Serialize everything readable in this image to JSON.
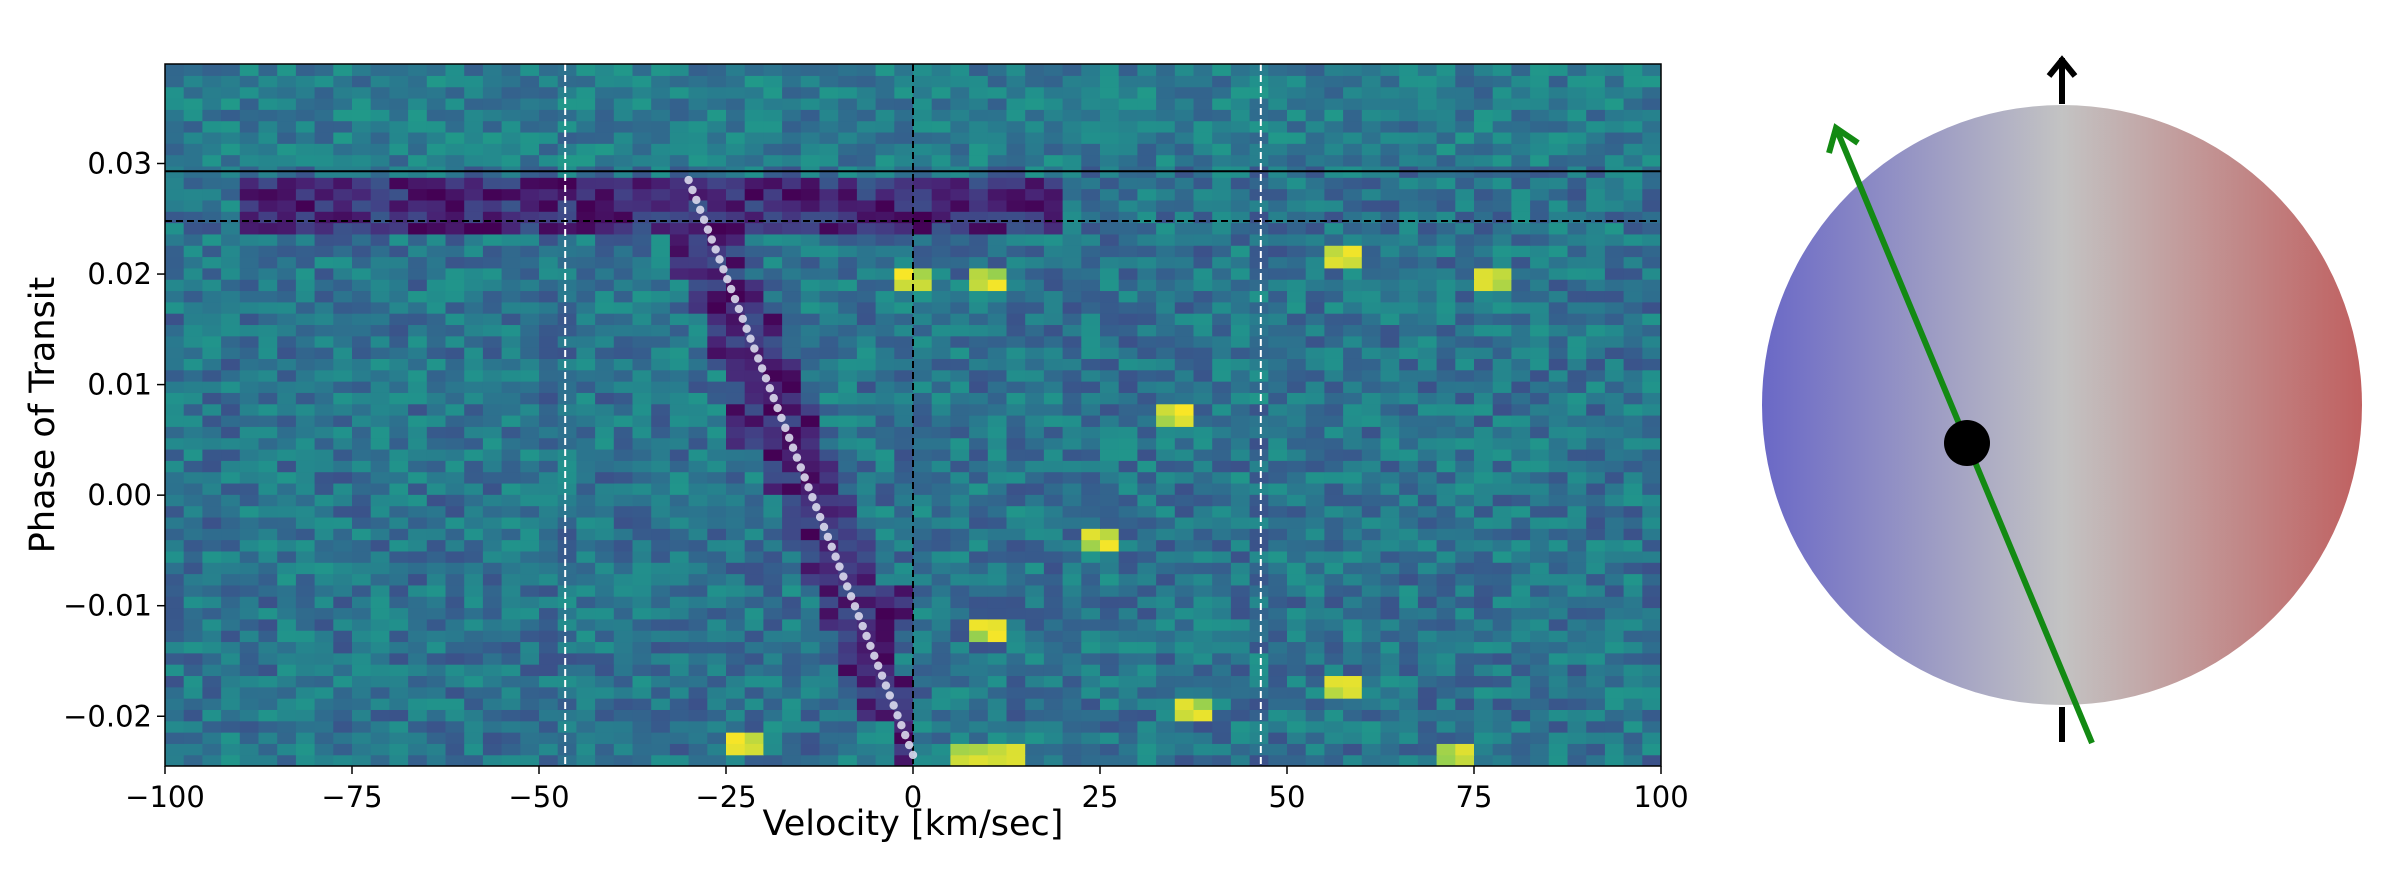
{
  "chart_data": [
    {
      "type": "heatmap",
      "xlabel": "Velocity [km/sec]",
      "ylabel": "Phase of Transit",
      "xlim": [
        -100,
        100
      ],
      "ylim": [
        -0.0245,
        0.039
      ],
      "x_ticks": [
        -100,
        -75,
        -50,
        -25,
        0,
        25,
        50,
        75,
        100
      ],
      "x_tick_labels": [
        "−100",
        "−75",
        "−50",
        "−25",
        "0",
        "25",
        "50",
        "75",
        "100"
      ],
      "y_ticks": [
        -0.02,
        -0.01,
        0.0,
        0.01,
        0.02,
        0.03
      ],
      "y_tick_labels": [
        "−0.02",
        "−0.01",
        "0.00",
        "0.01",
        "0.02",
        "0.03"
      ],
      "colormap": "viridis",
      "grid": false,
      "reference_lines": {
        "vertical_white_dashed": [
          -46.5,
          46.5
        ],
        "vertical_black_dashed": [
          0
        ],
        "horizontal_black_solid": [
          0.0293
        ],
        "horizontal_black_dashed": [
          0.0248
        ]
      },
      "shadow_track": {
        "style": "white dotted",
        "start": {
          "x": -30,
          "y": 0.0285
        },
        "end": {
          "x": 0,
          "y": -0.0235
        }
      },
      "dark_band_cells": [
        {
          "phase": 0.026,
          "vmin": -90,
          "vmax": 20
        },
        {
          "phase": 0.022,
          "vmin": -32,
          "vmax": -22
        },
        {
          "phase": 0.018,
          "vmin": -30,
          "vmax": -20
        },
        {
          "phase": 0.014,
          "vmin": -28,
          "vmax": -17
        },
        {
          "phase": 0.01,
          "vmin": -26,
          "vmax": -14
        },
        {
          "phase": 0.006,
          "vmin": -24,
          "vmax": -12
        },
        {
          "phase": 0.002,
          "vmin": -21,
          "vmax": -10
        },
        {
          "phase": -0.002,
          "vmin": -17,
          "vmax": -8
        },
        {
          "phase": -0.006,
          "vmin": -14,
          "vmax": -6
        },
        {
          "phase": -0.01,
          "vmin": -12,
          "vmax": -1
        },
        {
          "phase": -0.014,
          "vmin": -9,
          "vmax": -2
        },
        {
          "phase": -0.018,
          "vmin": -7,
          "vmax": -1
        },
        {
          "phase": -0.022,
          "vmin": -3,
          "vmax": 0
        }
      ],
      "bright_cells": [
        {
          "phase": 0.0195,
          "v": -1
        },
        {
          "phase": 0.0195,
          "v": 10
        },
        {
          "phase": -0.0235,
          "v": 8
        },
        {
          "phase": -0.0235,
          "v": 13
        },
        {
          "phase": -0.019,
          "v": 37
        },
        {
          "phase": -0.0225,
          "v": -22
        },
        {
          "phase": -0.023,
          "v": 73
        },
        {
          "phase": -0.0175,
          "v": 57
        },
        {
          "phase": -0.012,
          "v": 11
        },
        {
          "phase": -0.0045,
          "v": 24
        },
        {
          "phase": 0.007,
          "v": 36
        },
        {
          "phase": 0.022,
          "v": 58
        },
        {
          "phase": 0.0195,
          "v": 78
        }
      ]
    },
    {
      "type": "diagram",
      "description_visible": false,
      "stellar_disk_colors": {
        "approaching": "#6a68c6",
        "center": "#c3c3c3",
        "receding": "#c06060"
      },
      "planet_path_color": "#138a13",
      "rotation_axis_color": "#000000",
      "planet_color": "#000000"
    }
  ]
}
